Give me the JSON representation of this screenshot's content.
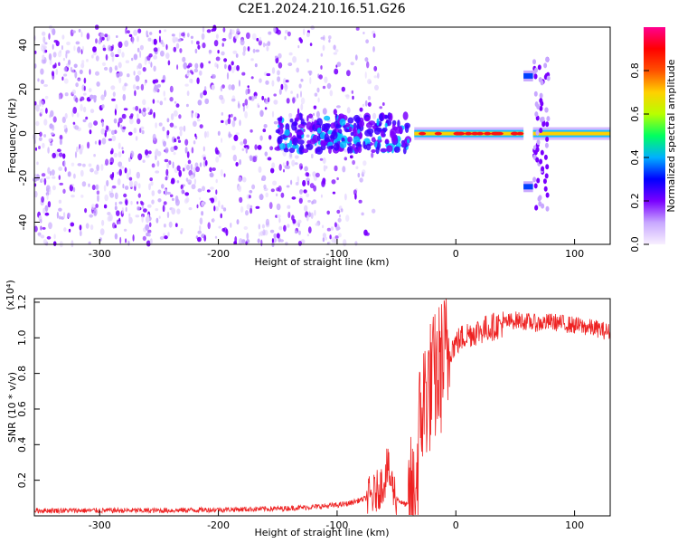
{
  "title": "C2E1.2024.210.16.51.G26",
  "chart_data": [
    {
      "type": "heatmap",
      "xlabel": "Height of straight line (km)",
      "ylabel": "Frequency (Hz)",
      "xlim": [
        -355,
        130
      ],
      "ylim": [
        -50,
        48
      ],
      "xticks": [
        -300,
        -200,
        -100,
        0,
        100
      ],
      "yticks": [
        -40,
        -20,
        0,
        20,
        40
      ],
      "colorbar": {
        "label": "Normalized spectral amplitude",
        "range": [
          0.0,
          1.0
        ],
        "ticks": [
          "0.0",
          "0.2",
          "0.4",
          "0.6",
          "0.8"
        ],
        "colors": [
          "#f8f0ff",
          "#c8a8ff",
          "#7a00ff",
          "#0000ff",
          "#00b0ff",
          "#00ff60",
          "#b8ff00",
          "#ffd000",
          "#ff5000",
          "#ff0000",
          "#ff0090"
        ]
      },
      "features": {
        "noise_region_x": [
          -355,
          -60
        ],
        "dominant_line_hz": 0,
        "main_line_x": [
          -35,
          57
        ],
        "gap_x": [
          57,
          65
        ],
        "second_segment_x": [
          65,
          130
        ],
        "sidebands_hz": [
          26,
          -24
        ],
        "sideband_x": [
          57,
          65
        ]
      }
    },
    {
      "type": "line",
      "xlabel": "Height of straight line (km)",
      "ylabel": "SNR (10 * v/v)",
      "y_scale_label": "(x10⁴)",
      "xlim": [
        -355,
        130
      ],
      "ylim": [
        0,
        1.22
      ],
      "xticks": [
        -300,
        -200,
        -100,
        0,
        100
      ],
      "yticks": [
        "0.2",
        "0.4",
        "0.6",
        "0.8",
        "1.0",
        "1.2"
      ],
      "series": [
        {
          "color": "#ee2222",
          "x": [
            -355,
            -300,
            -250,
            -200,
            -150,
            -120,
            -100,
            -90,
            -80,
            -70,
            -65,
            -60,
            -58,
            -55,
            -50,
            -45,
            -40,
            -35,
            -32,
            -30,
            -25,
            -20,
            -15,
            -10,
            -5,
            0,
            5,
            10,
            20,
            30,
            40,
            50,
            60,
            70,
            80,
            90,
            100,
            110,
            120,
            130
          ],
          "y": [
            0.03,
            0.03,
            0.03,
            0.035,
            0.04,
            0.05,
            0.06,
            0.07,
            0.09,
            0.11,
            0.15,
            0.2,
            0.28,
            0.2,
            0.1,
            0.07,
            0.06,
            0.08,
            0.3,
            0.55,
            0.7,
            0.74,
            0.8,
            0.88,
            0.93,
            0.97,
            1.0,
            1.02,
            1.04,
            1.06,
            1.08,
            1.1,
            1.09,
            1.08,
            1.09,
            1.08,
            1.07,
            1.06,
            1.05,
            1.03
          ]
        }
      ]
    }
  ]
}
